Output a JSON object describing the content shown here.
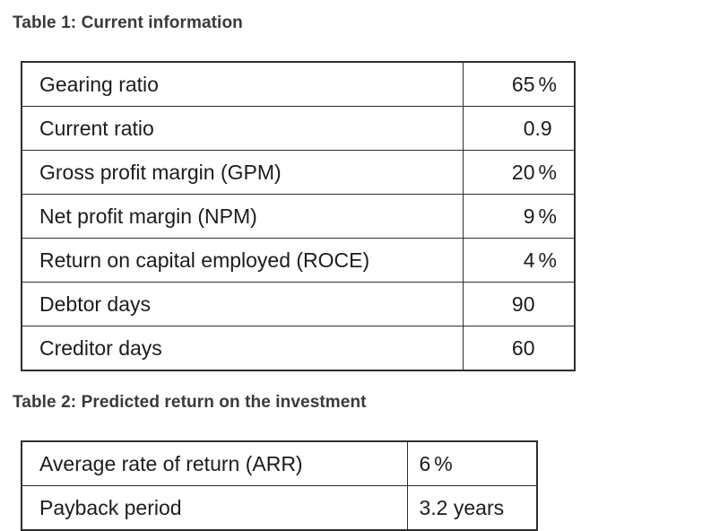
{
  "page": {
    "background_color": "#ffffff",
    "text_color": "#1c1c1c",
    "caption_color": "#3a3a3a",
    "border_color": "#2e2e2e"
  },
  "table1": {
    "title": "Table 1: Current information",
    "rows": [
      {
        "label": "Gearing ratio",
        "value": "65%"
      },
      {
        "label": "Current ratio",
        "value": "0.9"
      },
      {
        "label": "Gross profit margin (GPM)",
        "value": "20%"
      },
      {
        "label": "Net profit margin (NPM)",
        "value": "9%"
      },
      {
        "label": "Return on capital employed (ROCE)",
        "value": "4%"
      },
      {
        "label": "Debtor days",
        "value": "90"
      },
      {
        "label": "Creditor days",
        "value": "60"
      }
    ]
  },
  "table2": {
    "title": "Table 2: Predicted return on the investment",
    "rows": [
      {
        "label": "Average rate of return (ARR)",
        "value": "6%"
      },
      {
        "label": "Payback period",
        "value": "3.2 years"
      }
    ]
  }
}
